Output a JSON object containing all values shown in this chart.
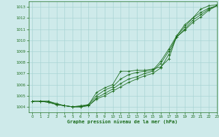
{
  "title": "Graphe pression niveau de la mer (hPa)",
  "bg_color": "#ceeaea",
  "grid_color": "#a8d4d4",
  "line_color": "#1a6b1a",
  "xlim": [
    -0.5,
    23
  ],
  "ylim": [
    1003.5,
    1013.5
  ],
  "xticks": [
    0,
    1,
    2,
    3,
    4,
    5,
    6,
    7,
    8,
    9,
    10,
    11,
    12,
    13,
    14,
    15,
    16,
    17,
    18,
    19,
    20,
    21,
    22,
    23
  ],
  "yticks": [
    1004,
    1005,
    1006,
    1007,
    1008,
    1009,
    1010,
    1011,
    1012,
    1013
  ],
  "series": [
    [
      1004.5,
      1004.5,
      1004.5,
      1004.2,
      1004.1,
      1004.0,
      1004.1,
      1004.2,
      1005.3,
      1005.7,
      1006.0,
      1007.2,
      1007.2,
      1007.3,
      1007.3,
      1007.4,
      1007.6,
      1008.3,
      1010.4,
      1011.4,
      1012.0,
      1012.8,
      1013.1,
      1013.2
    ],
    [
      1004.5,
      1004.5,
      1004.5,
      1004.3,
      1004.1,
      1004.0,
      1004.0,
      1004.2,
      1005.0,
      1005.5,
      1005.8,
      1006.5,
      1006.9,
      1007.1,
      1007.2,
      1007.3,
      1008.1,
      1009.2,
      1010.4,
      1011.2,
      1012.0,
      1012.5,
      1012.9,
      1013.1
    ],
    [
      1004.5,
      1004.5,
      1004.4,
      1004.2,
      1004.1,
      1004.0,
      1004.0,
      1004.1,
      1004.8,
      1005.2,
      1005.6,
      1006.1,
      1006.5,
      1006.7,
      1007.0,
      1007.2,
      1007.9,
      1009.0,
      1010.3,
      1011.0,
      1011.8,
      1012.3,
      1012.8,
      1013.1
    ],
    [
      1004.5,
      1004.5,
      1004.4,
      1004.2,
      1004.1,
      1004.0,
      1004.0,
      1004.1,
      1004.7,
      1005.0,
      1005.4,
      1005.8,
      1006.2,
      1006.5,
      1006.8,
      1007.0,
      1007.5,
      1008.7,
      1010.3,
      1010.9,
      1011.6,
      1012.1,
      1012.7,
      1013.1
    ]
  ]
}
